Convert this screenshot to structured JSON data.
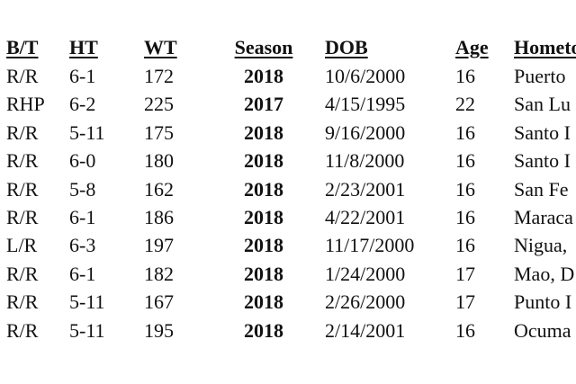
{
  "table": {
    "headers": {
      "bt": "B/T",
      "ht": "HT",
      "wt": "WT",
      "season": "Season",
      "dob": "DOB",
      "age": "Age",
      "hometown": "Hometown"
    },
    "rows": [
      {
        "bt": "R/R",
        "ht": "6-1",
        "wt": "172",
        "season": "2018",
        "dob": "10/6/2000",
        "age": "16",
        "hometown": "Puerto"
      },
      {
        "bt": "RHP",
        "ht": "6-2",
        "wt": "225",
        "season": "2017",
        "dob": "4/15/1995",
        "age": "22",
        "hometown": "San Lu"
      },
      {
        "bt": "R/R",
        "ht": "5-11",
        "wt": "175",
        "season": "2018",
        "dob": "9/16/2000",
        "age": "16",
        "hometown": "Santo I"
      },
      {
        "bt": "R/R",
        "ht": "6-0",
        "wt": "180",
        "season": "2018",
        "dob": "11/8/2000",
        "age": "16",
        "hometown": "Santo I"
      },
      {
        "bt": "R/R",
        "ht": "5-8",
        "wt": "162",
        "season": "2018",
        "dob": "2/23/2001",
        "age": "16",
        "hometown": "San Fe"
      },
      {
        "bt": "R/R",
        "ht": "6-1",
        "wt": "186",
        "season": "2018",
        "dob": "4/22/2001",
        "age": "16",
        "hometown": "Maraca"
      },
      {
        "bt": "L/R",
        "ht": "6-3",
        "wt": "197",
        "season": "2018",
        "dob": "11/17/2000",
        "age": "16",
        "hometown": "Nigua,"
      },
      {
        "bt": "R/R",
        "ht": "6-1",
        "wt": "182",
        "season": "2018",
        "dob": "1/24/2000",
        "age": "17",
        "hometown": "Mao, D"
      },
      {
        "bt": "R/R",
        "ht": "5-11",
        "wt": "167",
        "season": "2018",
        "dob": "2/26/2000",
        "age": "17",
        "hometown": "Punto I"
      },
      {
        "bt": "R/R",
        "ht": "5-11",
        "wt": "195",
        "season": "2018",
        "dob": "2/14/2001",
        "age": "16",
        "hometown": "Ocuma"
      }
    ]
  }
}
